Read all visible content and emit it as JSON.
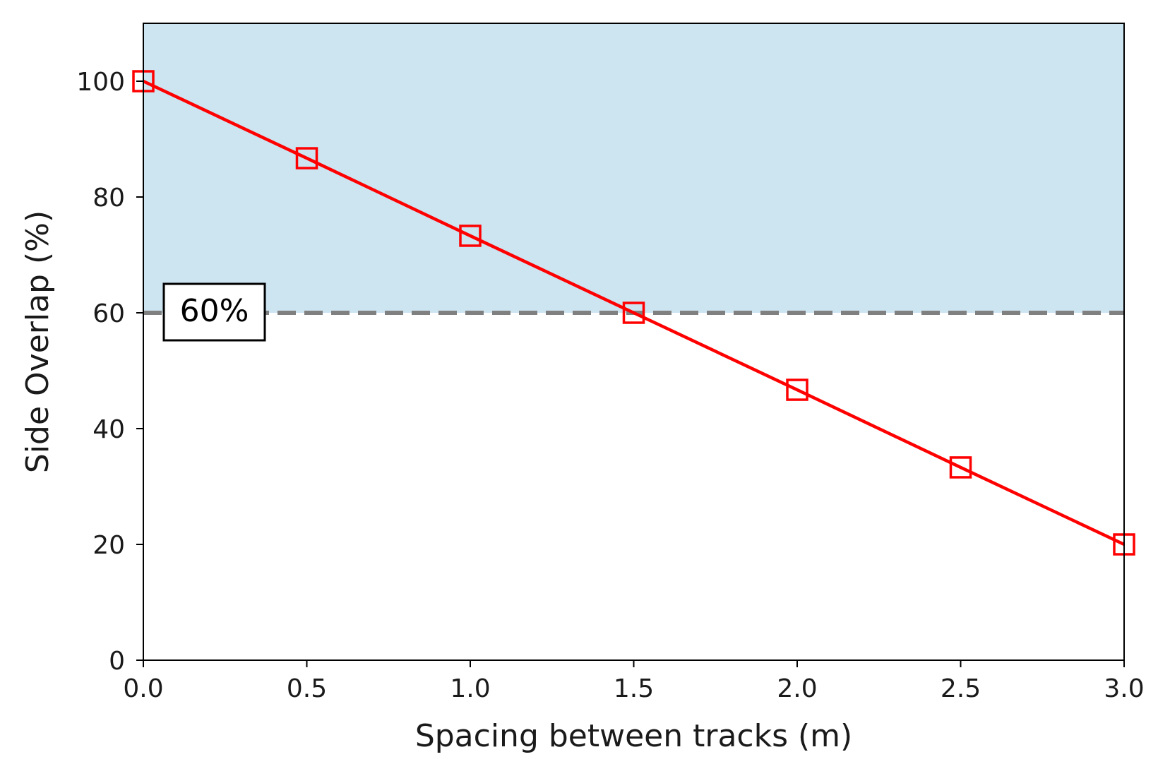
{
  "chart_data": {
    "type": "line",
    "title": "",
    "xlabel": "Spacing between tracks (m)",
    "ylabel": "Side Overlap (%)",
    "xlim": [
      0,
      3.0
    ],
    "ylim": [
      0,
      110
    ],
    "x_ticks": [
      0,
      0.5,
      1.0,
      1.5,
      2.0,
      2.5,
      3.0
    ],
    "x_tick_labels": [
      "0.0",
      "0.5",
      "1.0",
      "1.5",
      "2.0",
      "2.5",
      "3.0"
    ],
    "y_ticks": [
      0,
      20,
      40,
      60,
      80,
      100
    ],
    "y_tick_labels": [
      "0",
      "20",
      "40",
      "60",
      "80",
      "100"
    ],
    "grid": false,
    "series": [
      {
        "name": "Side Overlap",
        "marker": "square",
        "x": [
          0,
          0.5,
          1.0,
          1.5,
          2.0,
          2.5,
          3.0
        ],
        "values": [
          100,
          86.7,
          73.3,
          60,
          46.7,
          33.3,
          20
        ]
      }
    ],
    "threshold": {
      "value": 60,
      "label": "60%",
      "style": "dashed"
    },
    "shaded_region": {
      "from": 60,
      "to": 110,
      "meaning": "above threshold"
    }
  },
  "colors": {
    "series": "#ff0000",
    "threshold": "#808080",
    "shade": "#cde4f1",
    "axes": "#000000",
    "background": "#ffffff"
  }
}
